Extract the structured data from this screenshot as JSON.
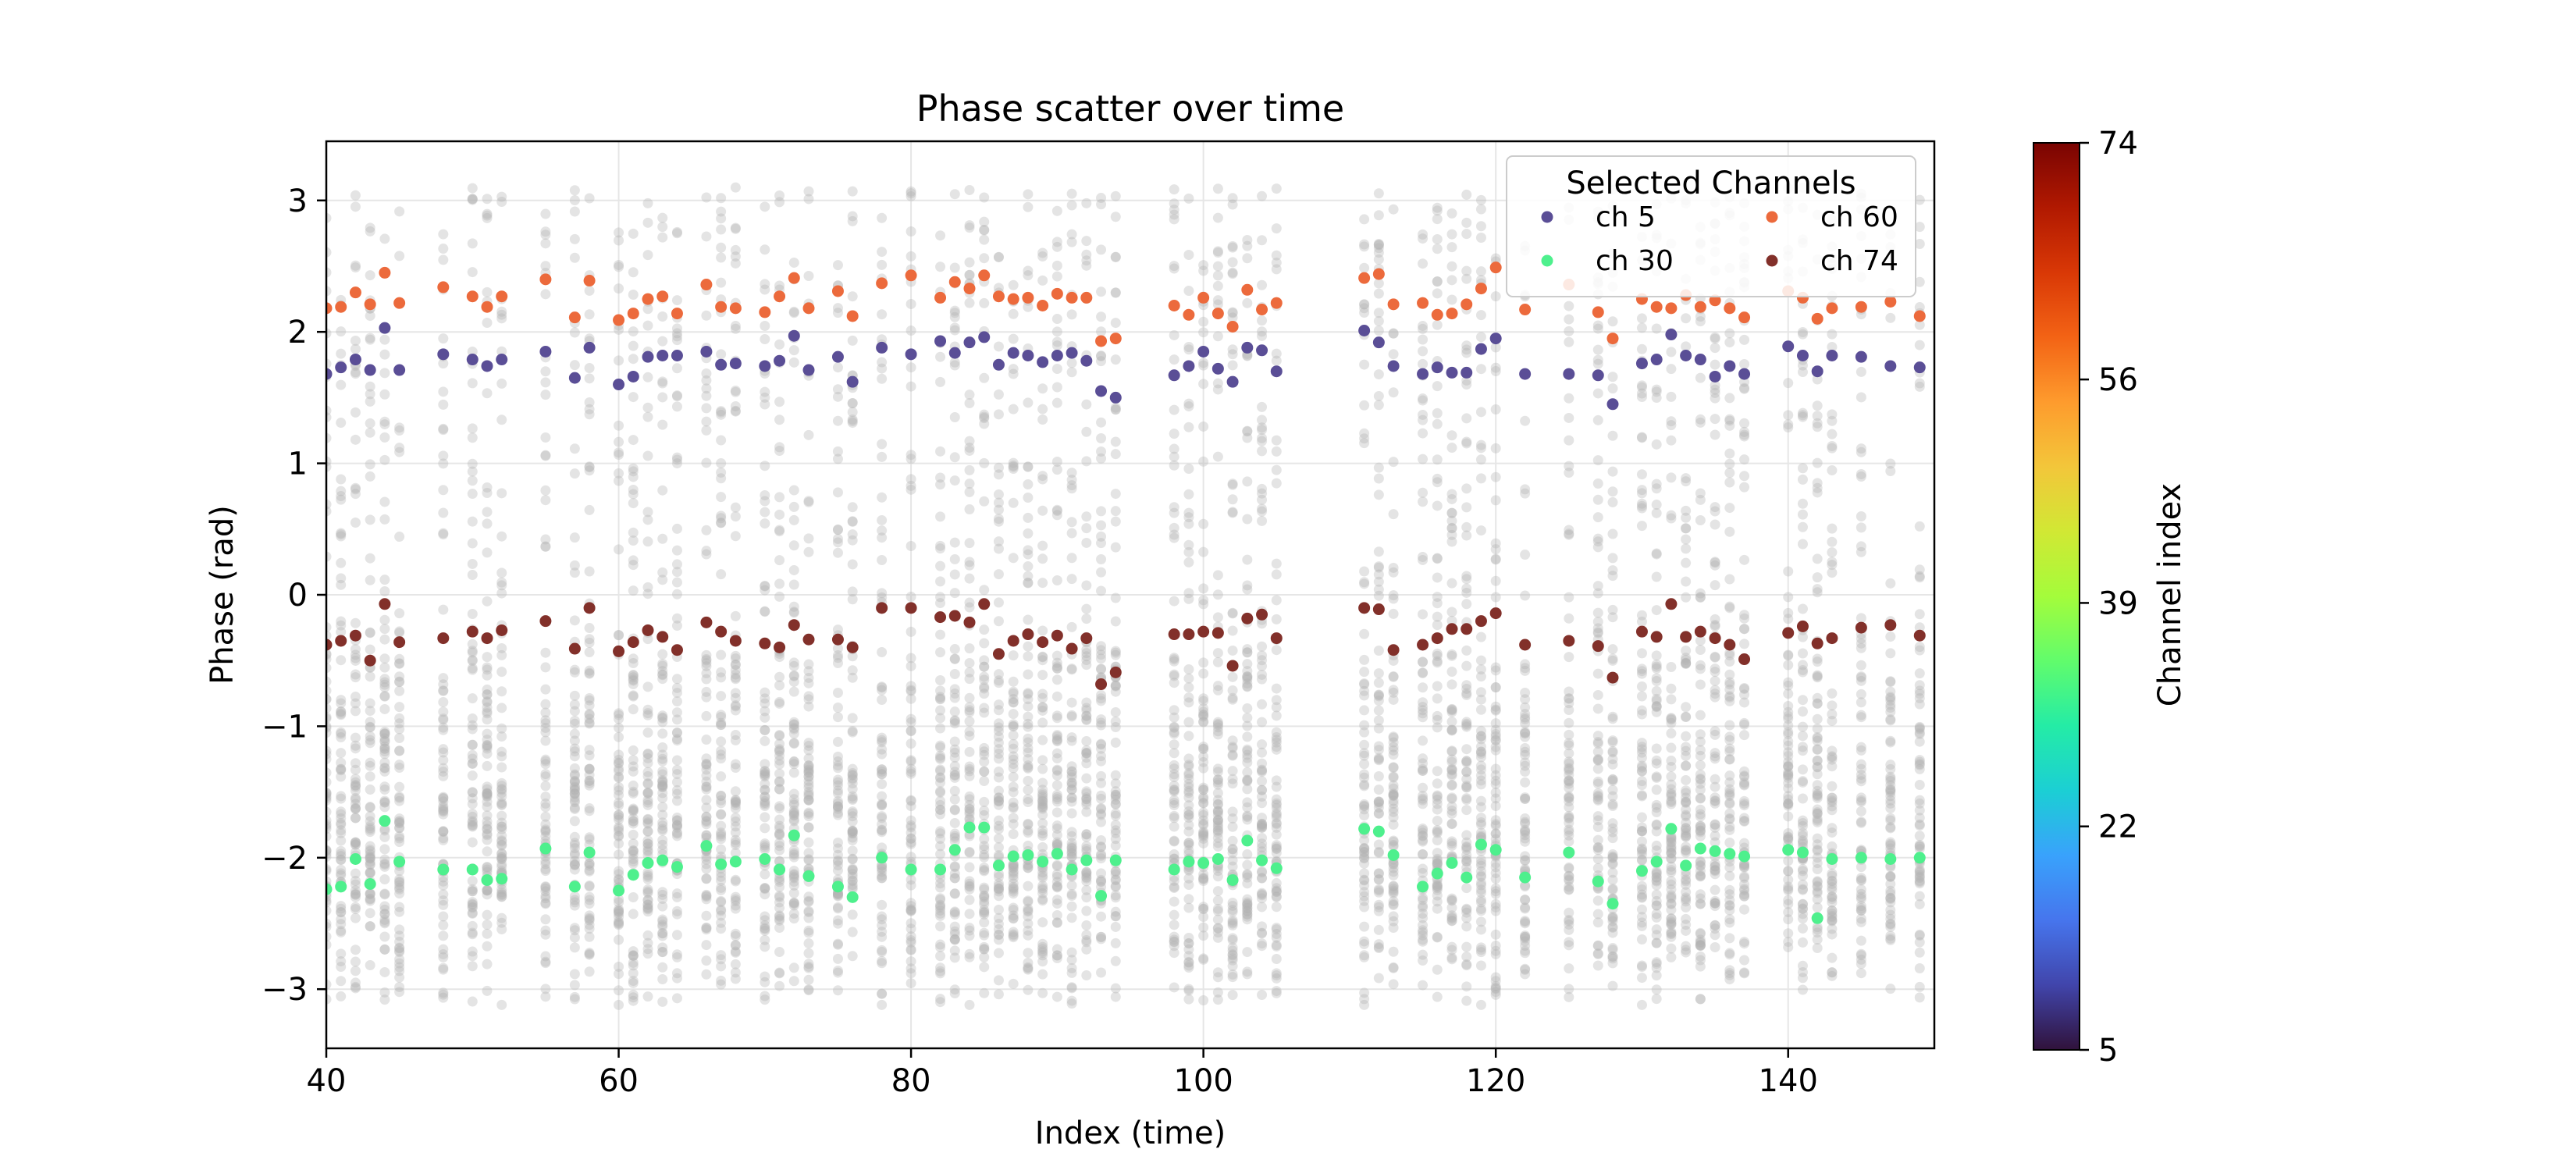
{
  "chart_data": {
    "type": "scatter",
    "title": "Phase scatter over time",
    "xlabel": "Index (time)",
    "ylabel": "Phase (rad)",
    "xlim": [
      40,
      150
    ],
    "ylim": [
      -3.45,
      3.45
    ],
    "xticks": [
      40,
      60,
      80,
      100,
      120,
      140
    ],
    "yticks": [
      -3,
      -2,
      -1,
      0,
      1,
      2,
      3
    ],
    "grid": true,
    "legend": {
      "title": "Selected Channels",
      "placement": "top-right",
      "columns": 2
    },
    "background_series": {
      "color": "#b3b3b3",
      "opacity": 0.35,
      "channels": 75
    },
    "colorbar": {
      "label": "Channel index",
      "ticks": [
        5,
        22,
        39,
        56,
        74
      ],
      "range": [
        5,
        74
      ],
      "colormap": "turbo",
      "colors": [
        "#30123b",
        "#4145ab",
        "#4675ed",
        "#39a2fc",
        "#1bcfd4",
        "#24eca6",
        "#61fc6c",
        "#a4fc3b",
        "#d1e834",
        "#f3c63a",
        "#fe9b2d",
        "#f36315",
        "#d93806",
        "#b11901",
        "#7a0402"
      ]
    },
    "x": [
      40,
      41,
      42,
      43,
      44,
      45,
      48,
      50,
      51,
      52,
      55,
      57,
      58,
      60,
      61,
      62,
      63,
      64,
      66,
      67,
      68,
      70,
      71,
      72,
      73,
      75,
      76,
      78,
      80,
      82,
      83,
      84,
      85,
      86,
      87,
      88,
      89,
      90,
      91,
      92,
      93,
      94,
      98,
      99,
      100,
      101,
      102,
      103,
      104,
      105,
      111,
      112,
      113,
      115,
      116,
      117,
      118,
      119,
      120,
      122,
      125,
      127,
      128,
      130,
      131,
      132,
      133,
      134,
      135,
      136,
      137,
      140,
      141,
      142,
      143,
      145,
      147,
      149
    ],
    "series": [
      {
        "name": "ch 5",
        "color": "#5a4e96",
        "values": [
          1.68,
          1.73,
          1.79,
          1.71,
          2.03,
          1.71,
          1.83,
          1.79,
          1.74,
          1.79,
          1.85,
          1.65,
          1.88,
          1.6,
          1.66,
          1.81,
          1.82,
          1.82,
          1.85,
          1.75,
          1.76,
          1.74,
          1.78,
          1.97,
          1.71,
          1.81,
          1.62,
          1.88,
          1.83,
          1.93,
          1.84,
          1.92,
          1.96,
          1.75,
          1.84,
          1.82,
          1.77,
          1.82,
          1.84,
          1.78,
          1.55,
          1.5,
          1.67,
          1.74,
          1.85,
          1.72,
          1.62,
          1.88,
          1.86,
          1.7,
          2.01,
          1.92,
          1.74,
          1.68,
          1.73,
          1.69,
          1.69,
          1.87,
          1.95,
          1.68,
          1.68,
          1.67,
          1.45,
          1.76,
          1.79,
          1.98,
          1.82,
          1.79,
          1.66,
          1.74,
          1.68,
          1.89,
          1.82,
          1.7,
          1.82,
          1.81,
          1.74,
          1.73
        ]
      },
      {
        "name": "ch 30",
        "color": "#4ef08d",
        "values": [
          -2.24,
          -2.22,
          -2.01,
          -2.2,
          -1.72,
          -2.03,
          -2.09,
          -2.09,
          -2.17,
          -2.16,
          -1.93,
          -2.22,
          -1.96,
          -2.25,
          -2.13,
          -2.04,
          -2.02,
          -2.07,
          -1.91,
          -2.05,
          -2.03,
          -2.01,
          -2.09,
          -1.83,
          -2.14,
          -2.22,
          -2.3,
          -2.0,
          -2.09,
          -2.09,
          -1.94,
          -1.77,
          -1.77,
          -2.06,
          -1.99,
          -1.98,
          -2.03,
          -1.97,
          -2.09,
          -2.02,
          -2.29,
          -2.02,
          -2.09,
          -2.03,
          -2.04,
          -2.01,
          -2.17,
          -1.87,
          -2.02,
          -2.08,
          -1.78,
          -1.8,
          -1.98,
          -2.22,
          -2.12,
          -2.04,
          -2.15,
          -1.9,
          -1.94,
          -2.15,
          -1.96,
          -2.18,
          -2.35,
          -2.1,
          -2.03,
          -1.78,
          -2.06,
          -1.93,
          -1.95,
          -1.97,
          -1.99,
          -1.94,
          -1.96,
          -2.46,
          -2.01,
          -2.0,
          -2.01,
          -2.0
        ]
      },
      {
        "name": "ch 60",
        "color": "#ec6a3c",
        "values": [
          2.18,
          2.19,
          2.3,
          2.21,
          2.45,
          2.22,
          2.34,
          2.27,
          2.19,
          2.27,
          2.4,
          2.11,
          2.39,
          2.09,
          2.14,
          2.25,
          2.27,
          2.14,
          2.36,
          2.19,
          2.18,
          2.15,
          2.27,
          2.41,
          2.18,
          2.31,
          2.12,
          2.37,
          2.43,
          2.26,
          2.38,
          2.33,
          2.43,
          2.27,
          2.25,
          2.26,
          2.2,
          2.29,
          2.26,
          2.26,
          1.93,
          1.95,
          2.2,
          2.13,
          2.26,
          2.14,
          2.04,
          2.32,
          2.17,
          2.22,
          2.41,
          2.44,
          2.21,
          2.22,
          2.13,
          2.14,
          2.21,
          2.33,
          2.49,
          2.17,
          2.36,
          2.15,
          1.95,
          2.25,
          2.19,
          2.18,
          2.28,
          2.19,
          2.24,
          2.18,
          2.11,
          2.31,
          2.26,
          2.1,
          2.18,
          2.19,
          2.23,
          2.12
        ]
      },
      {
        "name": "ch 74",
        "color": "#82302a",
        "values": [
          -0.38,
          -0.35,
          -0.31,
          -0.5,
          -0.07,
          -0.36,
          -0.33,
          -0.28,
          -0.33,
          -0.27,
          -0.2,
          -0.41,
          -0.1,
          -0.43,
          -0.36,
          -0.27,
          -0.32,
          -0.42,
          -0.21,
          -0.28,
          -0.35,
          -0.37,
          -0.4,
          -0.23,
          -0.34,
          -0.34,
          -0.4,
          -0.1,
          -0.1,
          -0.17,
          -0.16,
          -0.21,
          -0.07,
          -0.45,
          -0.35,
          -0.3,
          -0.36,
          -0.31,
          -0.41,
          -0.33,
          -0.68,
          -0.59,
          -0.3,
          -0.3,
          -0.28,
          -0.29,
          -0.54,
          -0.18,
          -0.15,
          -0.33,
          -0.1,
          -0.11,
          -0.42,
          -0.38,
          -0.33,
          -0.26,
          -0.26,
          -0.2,
          -0.14,
          -0.38,
          -0.35,
          -0.39,
          -0.63,
          -0.28,
          -0.32,
          -0.07,
          -0.32,
          -0.28,
          -0.33,
          -0.38,
          -0.49,
          -0.29,
          -0.24,
          -0.37,
          -0.33,
          -0.25,
          -0.23,
          -0.31
        ]
      }
    ]
  }
}
